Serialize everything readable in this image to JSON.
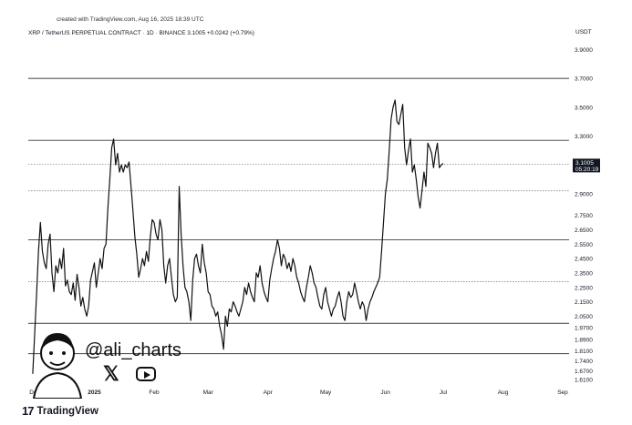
{
  "header": {
    "credit": "created with TradingView.com, Aug 16, 2025 18:39 UTC",
    "symbol_line": "XRP / TetherUS PERPETUAL CONTRACT · 1D · BINANCE  3.1005  +0.0242 (+0.79%)",
    "currency": "USDT"
  },
  "watermark": {
    "handle": "@ali_charts",
    "x_icon": "x-icon",
    "play_icon": "play-icon"
  },
  "brand": {
    "logo": "17",
    "name": "TradingView"
  },
  "price_tag": {
    "price": "3.1005",
    "timer": "05:20:19",
    "bg": "#131722"
  },
  "chart_data": {
    "type": "line",
    "title": "",
    "xlabel": "",
    "ylabel": "",
    "ylim": [
      1.56,
      3.96
    ],
    "y_ticks": [
      "3.9000",
      "3.7000",
      "3.5000",
      "3.3000",
      "3.1000",
      "2.9000",
      "2.7500",
      "2.6500",
      "2.5500",
      "2.4500",
      "2.3500",
      "2.2500",
      "2.1500",
      "2.0500",
      "1.9700",
      "1.8900",
      "1.8100",
      "1.7400",
      "1.6700",
      "1.6100"
    ],
    "x_ticks": [
      {
        "label": "Dec",
        "day": 0
      },
      {
        "label": "2025",
        "day": 31
      },
      {
        "label": "Feb",
        "day": 62
      },
      {
        "label": "Mar",
        "day": 90
      },
      {
        "label": "Apr",
        "day": 121
      },
      {
        "label": "May",
        "day": 151
      },
      {
        "label": "Jun",
        "day": 182
      },
      {
        "label": "Jul",
        "day": 212
      },
      {
        "label": "Aug",
        "day": 243
      },
      {
        "label": "Sep",
        "day": 274
      }
    ],
    "levels": [
      {
        "value": 3.7,
        "style": "solid"
      },
      {
        "value": 3.27,
        "style": "solid"
      },
      {
        "value": 3.105,
        "style": "dotted"
      },
      {
        "value": 2.92,
        "style": "dotted"
      },
      {
        "value": 2.58,
        "style": "solid"
      },
      {
        "value": 2.29,
        "style": "dotted"
      },
      {
        "value": 2.0,
        "style": "solid"
      },
      {
        "value": 1.79,
        "style": "solid"
      }
    ],
    "series": [
      {
        "values": [
          [
            -1,
            1.65
          ],
          [
            1,
            2.2
          ],
          [
            2,
            2.5
          ],
          [
            3,
            2.7
          ],
          [
            4,
            2.5
          ],
          [
            5,
            2.42
          ],
          [
            6,
            2.38
          ],
          [
            7,
            2.55
          ],
          [
            8,
            2.62
          ],
          [
            9,
            2.35
          ],
          [
            10,
            2.22
          ],
          [
            11,
            2.4
          ],
          [
            12,
            2.35
          ],
          [
            13,
            2.45
          ],
          [
            14,
            2.38
          ],
          [
            15,
            2.52
          ],
          [
            16,
            2.26
          ],
          [
            17,
            2.3
          ],
          [
            18,
            2.22
          ],
          [
            19,
            2.2
          ],
          [
            20,
            2.28
          ],
          [
            21,
            2.16
          ],
          [
            22,
            2.34
          ],
          [
            23,
            2.25
          ],
          [
            24,
            2.12
          ],
          [
            25,
            2.18
          ],
          [
            26,
            2.1
          ],
          [
            27,
            2.05
          ],
          [
            28,
            2.12
          ],
          [
            29,
            2.3
          ],
          [
            30,
            2.36
          ],
          [
            31,
            2.42
          ],
          [
            32,
            2.25
          ],
          [
            33,
            2.35
          ],
          [
            34,
            2.45
          ],
          [
            35,
            2.38
          ],
          [
            36,
            2.52
          ],
          [
            37,
            2.55
          ],
          [
            38,
            2.8
          ],
          [
            39,
            3.0
          ],
          [
            40,
            3.22
          ],
          [
            41,
            3.28
          ],
          [
            42,
            3.1
          ],
          [
            43,
            3.18
          ],
          [
            44,
            3.05
          ],
          [
            45,
            3.1
          ],
          [
            46,
            3.05
          ],
          [
            47,
            3.1
          ],
          [
            48,
            3.08
          ],
          [
            49,
            3.12
          ],
          [
            50,
            2.95
          ],
          [
            51,
            2.78
          ],
          [
            52,
            2.6
          ],
          [
            53,
            2.48
          ],
          [
            54,
            2.32
          ],
          [
            55,
            2.38
          ],
          [
            56,
            2.45
          ],
          [
            57,
            2.4
          ],
          [
            58,
            2.5
          ],
          [
            59,
            2.43
          ],
          [
            60,
            2.6
          ],
          [
            61,
            2.72
          ],
          [
            62,
            2.7
          ],
          [
            63,
            2.62
          ],
          [
            64,
            2.58
          ],
          [
            65,
            2.72
          ],
          [
            66,
            2.65
          ],
          [
            67,
            2.4
          ],
          [
            68,
            2.28
          ],
          [
            69,
            2.4
          ],
          [
            70,
            2.45
          ],
          [
            71,
            2.32
          ],
          [
            72,
            2.2
          ],
          [
            73,
            2.15
          ],
          [
            74,
            2.18
          ],
          [
            75,
            2.95
          ],
          [
            76,
            2.62
          ],
          [
            77,
            2.4
          ],
          [
            78,
            2.25
          ],
          [
            79,
            2.22
          ],
          [
            80,
            2.15
          ],
          [
            81,
            2.02
          ],
          [
            82,
            2.3
          ],
          [
            83,
            2.45
          ],
          [
            84,
            2.48
          ],
          [
            85,
            2.4
          ],
          [
            86,
            2.35
          ],
          [
            87,
            2.55
          ],
          [
            88,
            2.42
          ],
          [
            89,
            2.35
          ],
          [
            90,
            2.22
          ],
          [
            91,
            2.2
          ],
          [
            92,
            2.12
          ],
          [
            93,
            2.1
          ],
          [
            94,
            2.05
          ],
          [
            95,
            2.08
          ],
          [
            96,
            1.98
          ],
          [
            97,
            1.92
          ],
          [
            98,
            1.82
          ],
          [
            99,
            2.05
          ],
          [
            100,
            1.98
          ],
          [
            101,
            2.1
          ],
          [
            102,
            2.08
          ],
          [
            103,
            2.15
          ],
          [
            104,
            2.12
          ],
          [
            105,
            2.08
          ],
          [
            106,
            2.05
          ],
          [
            107,
            2.1
          ],
          [
            108,
            2.15
          ],
          [
            109,
            2.25
          ],
          [
            110,
            2.2
          ],
          [
            111,
            2.28
          ],
          [
            112,
            2.22
          ],
          [
            113,
            2.18
          ],
          [
            114,
            2.15
          ],
          [
            115,
            2.35
          ],
          [
            116,
            2.32
          ],
          [
            117,
            2.4
          ],
          [
            118,
            2.28
          ],
          [
            119,
            2.22
          ],
          [
            120,
            2.18
          ],
          [
            121,
            2.15
          ],
          [
            122,
            2.3
          ],
          [
            123,
            2.38
          ],
          [
            124,
            2.45
          ],
          [
            125,
            2.5
          ],
          [
            126,
            2.58
          ],
          [
            127,
            2.52
          ],
          [
            128,
            2.4
          ],
          [
            129,
            2.48
          ],
          [
            130,
            2.45
          ],
          [
            131,
            2.38
          ],
          [
            132,
            2.42
          ],
          [
            133,
            2.36
          ],
          [
            134,
            2.45
          ],
          [
            135,
            2.4
          ],
          [
            136,
            2.32
          ],
          [
            137,
            2.28
          ],
          [
            138,
            2.22
          ],
          [
            139,
            2.18
          ],
          [
            140,
            2.15
          ],
          [
            141,
            2.25
          ],
          [
            142,
            2.32
          ],
          [
            143,
            2.4
          ],
          [
            144,
            2.35
          ],
          [
            145,
            2.28
          ],
          [
            146,
            2.25
          ],
          [
            147,
            2.18
          ],
          [
            148,
            2.12
          ],
          [
            149,
            2.1
          ],
          [
            150,
            2.2
          ],
          [
            151,
            2.25
          ],
          [
            152,
            2.15
          ],
          [
            153,
            2.1
          ],
          [
            154,
            2.05
          ],
          [
            155,
            2.1
          ],
          [
            156,
            2.12
          ],
          [
            157,
            2.18
          ],
          [
            158,
            2.22
          ],
          [
            159,
            2.15
          ],
          [
            160,
            2.05
          ],
          [
            161,
            2.02
          ],
          [
            162,
            2.15
          ],
          [
            163,
            2.22
          ],
          [
            164,
            2.18
          ],
          [
            165,
            2.2
          ],
          [
            166,
            2.28
          ],
          [
            167,
            2.22
          ],
          [
            168,
            2.15
          ],
          [
            169,
            2.1
          ],
          [
            170,
            2.15
          ],
          [
            171,
            2.12
          ],
          [
            172,
            2.02
          ],
          [
            173,
            2.1
          ],
          [
            174,
            2.15
          ],
          [
            175,
            2.18
          ],
          [
            176,
            2.22
          ],
          [
            177,
            2.25
          ],
          [
            178,
            2.28
          ],
          [
            179,
            2.32
          ],
          [
            180,
            2.5
          ],
          [
            181,
            2.7
          ],
          [
            182,
            2.9
          ],
          [
            183,
            3.0
          ],
          [
            184,
            3.2
          ],
          [
            185,
            3.42
          ],
          [
            186,
            3.5
          ],
          [
            187,
            3.55
          ],
          [
            188,
            3.4
          ],
          [
            189,
            3.38
          ],
          [
            190,
            3.45
          ],
          [
            191,
            3.52
          ],
          [
            192,
            3.22
          ],
          [
            193,
            3.1
          ],
          [
            194,
            3.2
          ],
          [
            195,
            3.28
          ],
          [
            196,
            3.05
          ],
          [
            197,
            3.1
          ],
          [
            198,
            3.0
          ],
          [
            199,
            2.88
          ],
          [
            200,
            2.8
          ],
          [
            201,
            2.92
          ],
          [
            202,
            3.05
          ],
          [
            203,
            2.95
          ],
          [
            204,
            3.25
          ],
          [
            205,
            3.22
          ],
          [
            206,
            3.18
          ],
          [
            207,
            3.08
          ],
          [
            208,
            3.18
          ],
          [
            209,
            3.25
          ],
          [
            210,
            3.08
          ],
          [
            211,
            3.1
          ],
          [
            212,
            3.11
          ]
        ]
      }
    ],
    "notes": "x values are days counted from Dec 1, 2024 as shown on the date axis; chart ends mid-August 2025"
  }
}
